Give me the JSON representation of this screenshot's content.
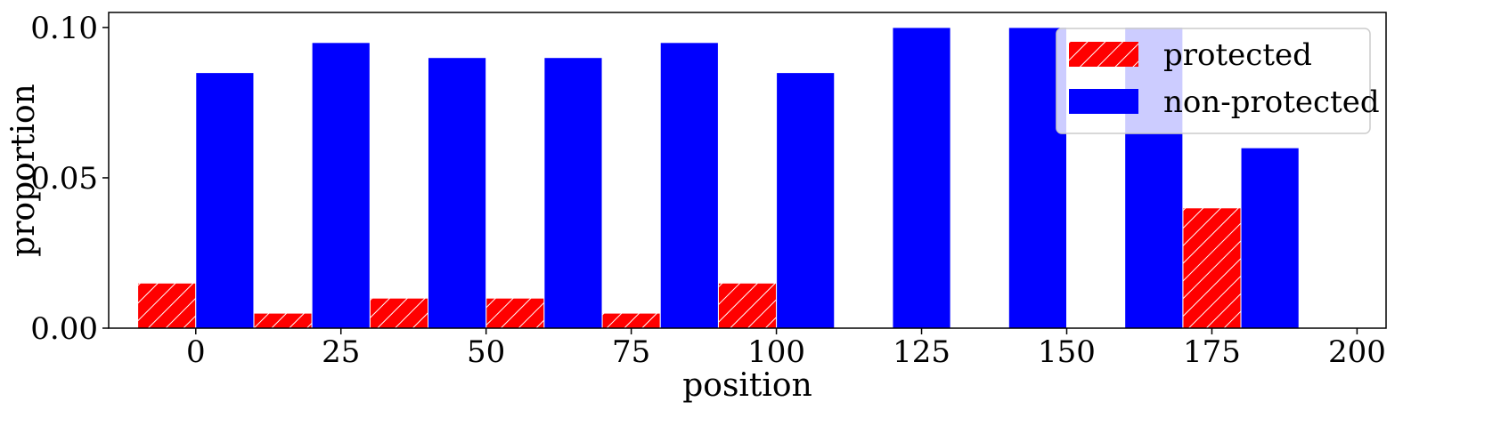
{
  "chart_data": {
    "type": "bar",
    "xlabel": "position",
    "ylabel": "proportion",
    "x": [
      0,
      20,
      40,
      60,
      80,
      100,
      120,
      140,
      160,
      180
    ],
    "xlim": [
      -15,
      205
    ],
    "ylim": [
      0,
      0.105
    ],
    "xticks": [
      "0",
      "25",
      "50",
      "75",
      "100",
      "125",
      "150",
      "175",
      "200"
    ],
    "yticks": [
      "0.00",
      "0.05",
      "0.10"
    ],
    "grid": false,
    "legend_position": "top-right",
    "series": [
      {
        "name": "protected",
        "color": "#ff0000",
        "pattern": "diagonal-hatch",
        "values": [
          0.015,
          0.005,
          0.01,
          0.01,
          0.005,
          0.015,
          0,
          0,
          0,
          0.04
        ]
      },
      {
        "name": "non-protected",
        "color": "#0000ff",
        "values": [
          0.085,
          0.095,
          0.09,
          0.09,
          0.095,
          0.085,
          0.1,
          0.1,
          0.1,
          0.06
        ]
      }
    ]
  }
}
